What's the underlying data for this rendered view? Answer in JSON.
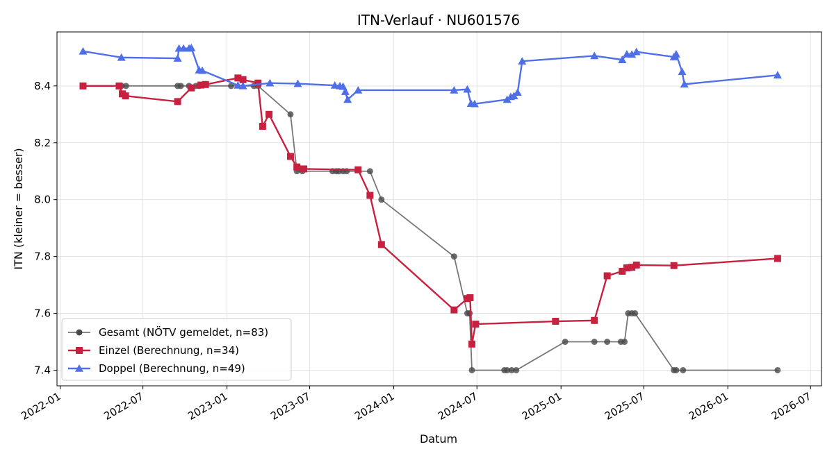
{
  "chart_data": {
    "type": "line",
    "title": "ITN-Verlauf · NU601576",
    "xlabel": "Datum",
    "ylabel": "ITN  (kleiner = besser)",
    "x_ticks": [
      "2022-01",
      "2022-07",
      "2023-01",
      "2023-07",
      "2024-01",
      "2024-07",
      "2025-01",
      "2025-07",
      "2026-01",
      "2026-07"
    ],
    "y_ticks": [
      "7.4",
      "7.6",
      "7.8",
      "8.0",
      "8.2",
      "8.4"
    ],
    "xlim": [
      "2021-12-25",
      "2026-07-25"
    ],
    "ylim": [
      7.345,
      8.59
    ],
    "grid": true,
    "legend_position": "lower-left",
    "series": [
      {
        "name": "Gesamt (NÖTV gemeldet, n=83)",
        "color": "#4a4a4a",
        "marker": "circle",
        "points": [
          [
            "2022-02-20",
            8.4
          ],
          [
            "2022-05-15",
            8.4
          ],
          [
            "2022-05-25",
            8.4
          ],
          [
            "2022-09-15",
            8.4
          ],
          [
            "2022-09-22",
            8.4
          ],
          [
            "2022-10-10",
            8.4
          ],
          [
            "2022-10-25",
            8.4
          ],
          [
            "2022-11-01",
            8.4
          ],
          [
            "2023-01-10",
            8.4
          ],
          [
            "2023-03-01",
            8.4
          ],
          [
            "2023-03-10",
            8.4
          ],
          [
            "2023-05-20",
            8.3
          ],
          [
            "2023-06-03",
            8.1
          ],
          [
            "2023-06-15",
            8.1
          ],
          [
            "2023-08-20",
            8.1
          ],
          [
            "2023-08-28",
            8.1
          ],
          [
            "2023-09-03",
            8.1
          ],
          [
            "2023-09-12",
            8.1
          ],
          [
            "2023-09-20",
            8.1
          ],
          [
            "2023-11-10",
            8.1
          ],
          [
            "2023-12-05",
            8.0
          ],
          [
            "2024-05-12",
            7.8
          ],
          [
            "2024-06-10",
            7.6
          ],
          [
            "2024-06-15",
            7.6
          ],
          [
            "2024-06-20",
            7.4
          ],
          [
            "2024-08-30",
            7.4
          ],
          [
            "2024-09-05",
            7.4
          ],
          [
            "2024-09-15",
            7.4
          ],
          [
            "2024-09-25",
            7.4
          ],
          [
            "2025-01-10",
            7.5
          ],
          [
            "2025-03-15",
            7.5
          ],
          [
            "2025-04-12",
            7.5
          ],
          [
            "2025-05-12",
            7.5
          ],
          [
            "2025-05-20",
            7.5
          ],
          [
            "2025-05-28",
            7.6
          ],
          [
            "2025-06-05",
            7.6
          ],
          [
            "2025-06-12",
            7.6
          ],
          [
            "2025-09-05",
            7.4
          ],
          [
            "2025-09-10",
            7.4
          ],
          [
            "2025-09-25",
            7.4
          ],
          [
            "2026-04-20",
            7.4
          ]
        ]
      },
      {
        "name": "Einzel (Berechnung, n=34)",
        "color": "#c8203f",
        "marker": "square",
        "points": [
          [
            "2022-02-20",
            8.4
          ],
          [
            "2022-05-10",
            8.4
          ],
          [
            "2022-05-17",
            8.372
          ],
          [
            "2022-05-24",
            8.365
          ],
          [
            "2022-09-15",
            8.345
          ],
          [
            "2022-10-15",
            8.393
          ],
          [
            "2022-11-05",
            8.403
          ],
          [
            "2022-11-15",
            8.405
          ],
          [
            "2023-01-25",
            8.428
          ],
          [
            "2023-02-05",
            8.422
          ],
          [
            "2023-03-10",
            8.41
          ],
          [
            "2023-03-20",
            8.258
          ],
          [
            "2023-04-03",
            8.3
          ],
          [
            "2023-05-20",
            8.152
          ],
          [
            "2023-06-03",
            8.115
          ],
          [
            "2023-06-18",
            8.108
          ],
          [
            "2023-10-15",
            8.105
          ],
          [
            "2023-11-10",
            8.015
          ],
          [
            "2023-12-05",
            7.842
          ],
          [
            "2024-05-12",
            7.612
          ],
          [
            "2024-06-10",
            7.652
          ],
          [
            "2024-06-16",
            7.655
          ],
          [
            "2024-06-20",
            7.492
          ],
          [
            "2024-06-28",
            7.562
          ],
          [
            "2024-12-20",
            7.572
          ],
          [
            "2025-03-15",
            7.575
          ],
          [
            "2025-04-12",
            7.732
          ],
          [
            "2025-05-15",
            7.748
          ],
          [
            "2025-05-25",
            7.76
          ],
          [
            "2025-06-05",
            7.762
          ],
          [
            "2025-06-15",
            7.77
          ],
          [
            "2025-09-05",
            7.768
          ],
          [
            "2026-04-20",
            7.793
          ]
        ]
      },
      {
        "name": "Doppel (Berechnung, n=49)",
        "color": "#4e6fe8",
        "marker": "triangle",
        "points": [
          [
            "2022-02-20",
            8.522
          ],
          [
            "2022-05-15",
            8.5
          ],
          [
            "2022-09-15",
            8.497
          ],
          [
            "2022-09-18",
            8.532
          ],
          [
            "2022-09-28",
            8.532
          ],
          [
            "2022-10-10",
            8.532
          ],
          [
            "2022-10-15",
            8.534
          ],
          [
            "2022-11-01",
            8.456
          ],
          [
            "2022-11-08",
            8.454
          ],
          [
            "2023-01-25",
            8.402
          ],
          [
            "2023-02-05",
            8.4
          ],
          [
            "2023-04-05",
            8.41
          ],
          [
            "2023-06-05",
            8.408
          ],
          [
            "2023-08-25",
            8.402
          ],
          [
            "2023-09-05",
            8.4
          ],
          [
            "2023-09-12",
            8.398
          ],
          [
            "2023-09-17",
            8.38
          ],
          [
            "2023-09-22",
            8.352
          ],
          [
            "2023-10-15",
            8.385
          ],
          [
            "2024-05-12",
            8.385
          ],
          [
            "2024-06-10",
            8.388
          ],
          [
            "2024-06-18",
            8.338
          ],
          [
            "2024-06-26",
            8.337
          ],
          [
            "2024-09-05",
            8.352
          ],
          [
            "2024-09-13",
            8.362
          ],
          [
            "2024-09-20",
            8.365
          ],
          [
            "2024-09-28",
            8.377
          ],
          [
            "2024-10-08",
            8.487
          ],
          [
            "2025-03-15",
            8.506
          ],
          [
            "2025-05-15",
            8.492
          ],
          [
            "2025-05-25",
            8.512
          ],
          [
            "2025-06-05",
            8.511
          ],
          [
            "2025-06-15",
            8.52
          ],
          [
            "2025-09-05",
            8.502
          ],
          [
            "2025-09-10",
            8.512
          ],
          [
            "2025-09-23",
            8.45
          ],
          [
            "2025-09-28",
            8.406
          ],
          [
            "2026-04-20",
            8.438
          ]
        ]
      }
    ]
  }
}
